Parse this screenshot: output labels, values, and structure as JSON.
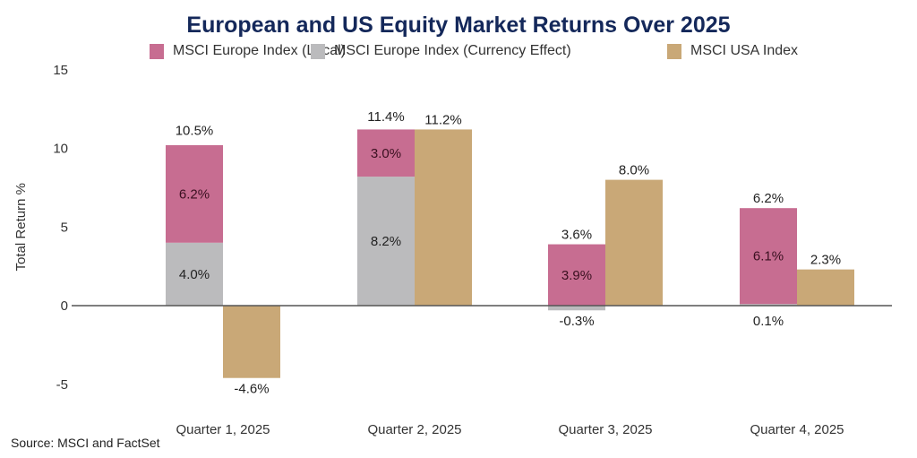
{
  "chart_data": {
    "type": "bar",
    "title": "European and US Equity Market Returns Over 2025",
    "xlabel": "",
    "ylabel": "Total Return %",
    "ylim": [
      -5,
      15
    ],
    "yticks": [
      15,
      10,
      5,
      0,
      -5
    ],
    "categories": [
      "Quarter 1, 2025",
      "Quarter 2, 2025",
      "Quarter 3, 2025",
      "Quarter 4, 2025"
    ],
    "legend_position": "top",
    "series": [
      {
        "name": "MSCI Europe Index (Local)",
        "color": "#c76d91",
        "stack": "europe",
        "values": [
          6.2,
          3.0,
          3.9,
          6.1
        ],
        "labels": [
          "6.2%",
          "3.0%",
          "3.9%",
          "6.1%"
        ]
      },
      {
        "name": "MSCI Europe Index (Currency Effect)",
        "color": "#bbbbbd",
        "stack": "europe",
        "values": [
          4.0,
          8.2,
          -0.3,
          0.1
        ],
        "labels": [
          "4.0%",
          "8.2%",
          "-0.3%",
          "0.1%"
        ]
      },
      {
        "name": "MSCI USA Index",
        "color": "#c9a877",
        "stack": "usa",
        "values": [
          -4.6,
          11.2,
          8.0,
          2.3
        ],
        "labels": [
          "-4.6%",
          "11.2%",
          "8.0%",
          "2.3%"
        ]
      }
    ],
    "europe_totals": [
      10.5,
      11.4,
      3.6,
      6.2
    ],
    "europe_total_labels": [
      "10.5%",
      "11.4%",
      "3.6%",
      "6.2%"
    ]
  },
  "source": "Source: MSCI and FactSet"
}
